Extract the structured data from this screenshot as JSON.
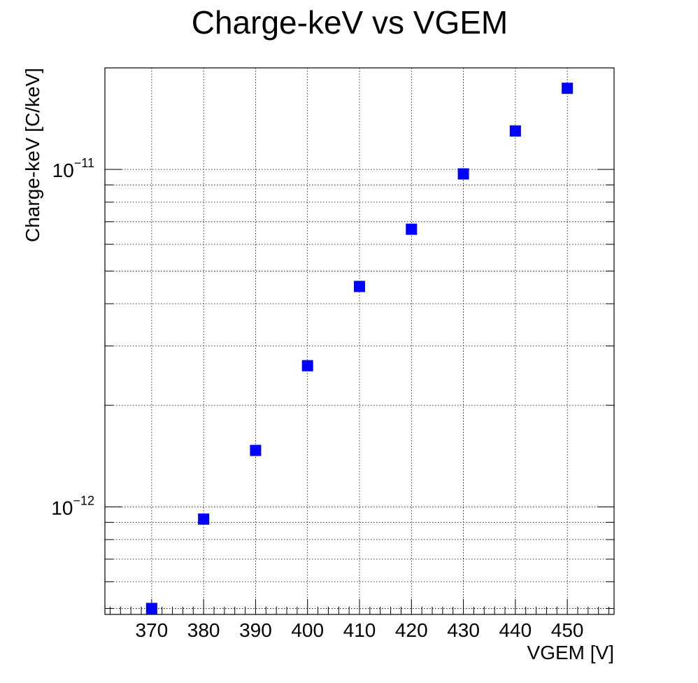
{
  "chart_data": {
    "type": "scatter",
    "title": "Charge-keV vs VGEM",
    "xlabel": "VGEM [V]",
    "ylabel": "Charge-keV [C/keV]",
    "xlim": [
      361,
      459
    ],
    "ylim": [
      4.8e-13,
      2e-11
    ],
    "yscale": "log",
    "grid": true,
    "marker": "square",
    "marker_color": "#0000ff",
    "x_ticks": [
      "370",
      "380",
      "390",
      "400",
      "410",
      "420",
      "430",
      "440",
      "450"
    ],
    "x_tick_values": [
      370,
      380,
      390,
      400,
      410,
      420,
      430,
      440,
      450
    ],
    "y_major_ticks": [
      {
        "value": 1e-12,
        "base": "10",
        "exponent": "−12"
      },
      {
        "value": 1e-11,
        "base": "10",
        "exponent": "−11"
      }
    ],
    "series": [
      {
        "x": [
          370,
          380,
          390,
          400,
          410,
          420,
          430,
          440,
          450
        ],
        "y": [
          5e-13,
          9.2e-13,
          1.47e-12,
          2.62e-12,
          4.5e-12,
          6.65e-12,
          9.7e-12,
          1.3e-11,
          1.74e-11
        ]
      }
    ]
  }
}
